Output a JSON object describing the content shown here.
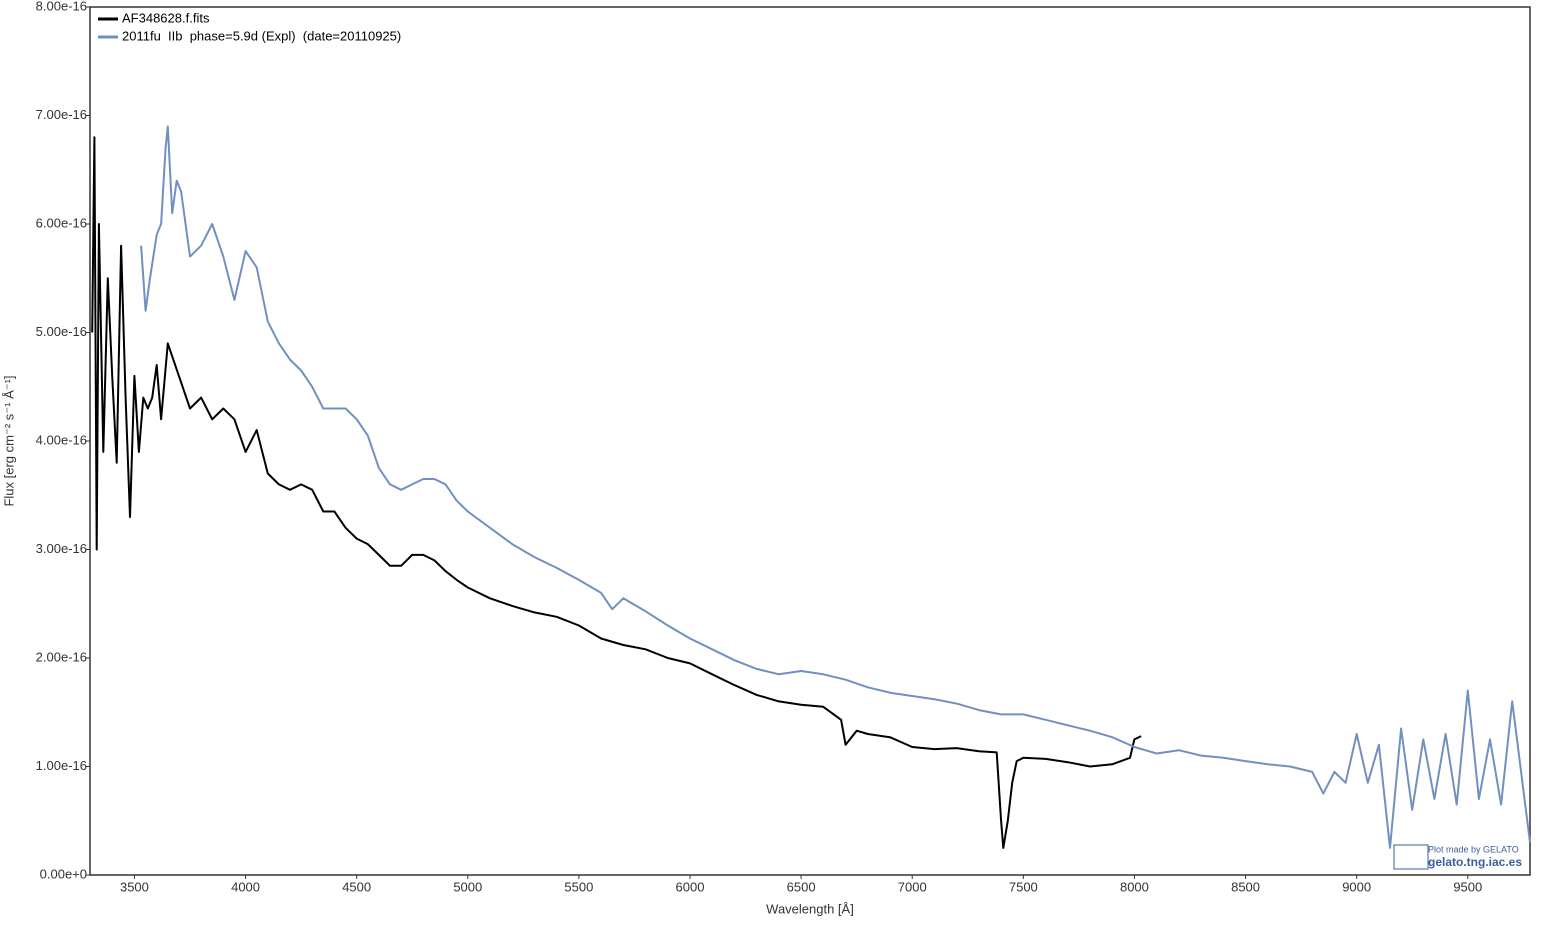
{
  "chart_data": {
    "type": "line",
    "x_label": "Wavelength [Å]",
    "y_label": "Flux [erg cm⁻² s⁻¹ Å⁻¹]",
    "annotations": [
      "Plot made by GELATO",
      "gelato.tng.iac.es"
    ],
    "legend": "upper left",
    "xlim": [
      3300,
      9780
    ],
    "ylim": [
      0,
      8e-16
    ],
    "xticks": [
      3500,
      4000,
      4500,
      5000,
      5500,
      6000,
      6500,
      7000,
      7500,
      8000,
      8500,
      9000,
      9500
    ],
    "yticks": [
      {
        "value": 0,
        "label": "0.00e+0"
      },
      {
        "value": 1e-16,
        "label": "1.00e-16"
      },
      {
        "value": 2e-16,
        "label": "2.00e-16"
      },
      {
        "value": 3e-16,
        "label": "3.00e-16"
      },
      {
        "value": 4e-16,
        "label": "4.00e-16"
      },
      {
        "value": 5e-16,
        "label": "5.00e-16"
      },
      {
        "value": 6e-16,
        "label": "6.00e-16"
      },
      {
        "value": 7e-16,
        "label": "7.00e-16"
      },
      {
        "value": 8e-16,
        "label": "8.00e-16"
      }
    ],
    "series": [
      {
        "name": "AF348628.f.fits",
        "color": "#000000",
        "x": [
          3310,
          3320,
          3330,
          3340,
          3360,
          3380,
          3400,
          3420,
          3440,
          3460,
          3480,
          3500,
          3520,
          3540,
          3560,
          3580,
          3600,
          3620,
          3650,
          3700,
          3750,
          3800,
          3850,
          3900,
          3950,
          4000,
          4050,
          4100,
          4150,
          4200,
          4250,
          4300,
          4350,
          4400,
          4450,
          4500,
          4550,
          4600,
          4650,
          4700,
          4750,
          4800,
          4850,
          4900,
          4950,
          5000,
          5100,
          5200,
          5300,
          5400,
          5500,
          5600,
          5700,
          5800,
          5900,
          6000,
          6100,
          6200,
          6300,
          6400,
          6500,
          6600,
          6680,
          6700,
          6750,
          6800,
          6900,
          7000,
          7100,
          7200,
          7300,
          7380,
          7400,
          7410,
          7430,
          7450,
          7470,
          7500,
          7600,
          7700,
          7800,
          7900,
          7980,
          8000,
          8030
        ],
        "values": [
          5e-16,
          6.8e-16,
          3e-16,
          6e-16,
          3.9e-16,
          5.5e-16,
          4.6e-16,
          3.8e-16,
          5.8e-16,
          4.4e-16,
          3.3e-16,
          4.6e-16,
          3.9e-16,
          4.4e-16,
          4.3e-16,
          4.4e-16,
          4.7e-16,
          4.2e-16,
          4.9e-16,
          4.6e-16,
          4.3e-16,
          4.4e-16,
          4.2e-16,
          4.3e-16,
          4.2e-16,
          3.9e-16,
          4.1e-16,
          3.7e-16,
          3.6e-16,
          3.55e-16,
          3.6e-16,
          3.55e-16,
          3.35e-16,
          3.35e-16,
          3.2e-16,
          3.1e-16,
          3.05e-16,
          2.95e-16,
          2.85e-16,
          2.85e-16,
          2.95e-16,
          2.95e-16,
          2.9e-16,
          2.8e-16,
          2.72e-16,
          2.65e-16,
          2.55e-16,
          2.48e-16,
          2.42e-16,
          2.38e-16,
          2.3e-16,
          2.18e-16,
          2.12e-16,
          2.08e-16,
          2e-16,
          1.95e-16,
          1.85e-16,
          1.75e-16,
          1.66e-16,
          1.6e-16,
          1.57e-16,
          1.55e-16,
          1.43e-16,
          1.2e-16,
          1.33e-16,
          1.3e-16,
          1.27e-16,
          1.18e-16,
          1.16e-16,
          1.17e-16,
          1.14e-16,
          1.13e-16,
          5e-17,
          2.5e-17,
          5e-17,
          8.5e-17,
          1.05e-16,
          1.08e-16,
          1.07e-16,
          1.04e-16,
          1e-16,
          1.02e-16,
          1.08e-16,
          1.25e-16,
          1.28e-16
        ]
      },
      {
        "name": "2011fu  IIb  phase=5.9d (Expl)  (date=20110925)",
        "color": "#7190c0",
        "x": [
          3530,
          3550,
          3570,
          3600,
          3620,
          3640,
          3650,
          3670,
          3690,
          3710,
          3750,
          3800,
          3850,
          3900,
          3950,
          4000,
          4050,
          4100,
          4150,
          4200,
          4250,
          4300,
          4350,
          4400,
          4450,
          4500,
          4550,
          4600,
          4650,
          4700,
          4750,
          4800,
          4850,
          4900,
          4950,
          5000,
          5100,
          5200,
          5300,
          5400,
          5500,
          5600,
          5650,
          5700,
          5800,
          5900,
          6000,
          6100,
          6200,
          6300,
          6400,
          6500,
          6600,
          6700,
          6800,
          6900,
          7000,
          7100,
          7200,
          7300,
          7400,
          7500,
          7600,
          7700,
          7800,
          7900,
          8000,
          8100,
          8200,
          8300,
          8400,
          8500,
          8600,
          8700,
          8800,
          8850,
          8900,
          8950,
          9000,
          9050,
          9100,
          9150,
          9200,
          9250,
          9300,
          9350,
          9400,
          9450,
          9500,
          9550,
          9600,
          9650,
          9700,
          9780
        ],
        "values": [
          5.8e-16,
          5.2e-16,
          5.5e-16,
          5.9e-16,
          6e-16,
          6.7e-16,
          6.9e-16,
          6.1e-16,
          6.4e-16,
          6.3e-16,
          5.7e-16,
          5.8e-16,
          6e-16,
          5.7e-16,
          5.3e-16,
          5.75e-16,
          5.6e-16,
          5.1e-16,
          4.9e-16,
          4.75e-16,
          4.65e-16,
          4.5e-16,
          4.3e-16,
          4.3e-16,
          4.3e-16,
          4.2e-16,
          4.05e-16,
          3.75e-16,
          3.6e-16,
          3.55e-16,
          3.6e-16,
          3.65e-16,
          3.65e-16,
          3.6e-16,
          3.45e-16,
          3.35e-16,
          3.2e-16,
          3.05e-16,
          2.93e-16,
          2.83e-16,
          2.72e-16,
          2.6e-16,
          2.45e-16,
          2.55e-16,
          2.43e-16,
          2.3e-16,
          2.18e-16,
          2.08e-16,
          1.98e-16,
          1.9e-16,
          1.85e-16,
          1.88e-16,
          1.85e-16,
          1.8e-16,
          1.73e-16,
          1.68e-16,
          1.65e-16,
          1.62e-16,
          1.58e-16,
          1.52e-16,
          1.48e-16,
          1.48e-16,
          1.43e-16,
          1.38e-16,
          1.33e-16,
          1.27e-16,
          1.18e-16,
          1.12e-16,
          1.15e-16,
          1.1e-16,
          1.08e-16,
          1.05e-16,
          1.02e-16,
          1e-16,
          9.5e-17,
          7.5e-17,
          9.5e-17,
          8.5e-17,
          1.3e-16,
          8.5e-17,
          1.2e-16,
          2.5e-17,
          1.35e-16,
          6e-17,
          1.25e-16,
          7e-17,
          1.3e-16,
          6.5e-17,
          1.7e-16,
          7e-17,
          1.25e-16,
          6.5e-17,
          1.6e-16,
          3e-17
        ]
      }
    ]
  }
}
